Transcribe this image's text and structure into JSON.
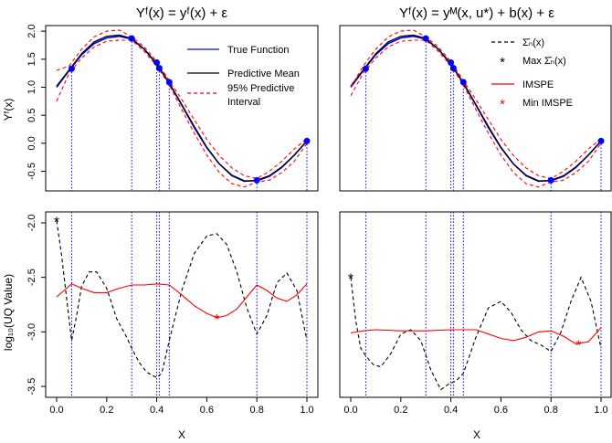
{
  "left_title": "Yᶠ(x) = yᶠ(x) + ε",
  "right_title": "Yᶠ(x) = yᴹ(x, u*) + b(x) + ε",
  "top_ylabel": "Yᶠ(x)",
  "bottom_ylabel": "log₁₀(UQ Value)",
  "xlabel": "X",
  "legend_left": {
    "true_function": "True Function",
    "predictive_mean": "Predictive Mean",
    "interval_line1": "95% Predictive",
    "interval_line2": "Interval"
  },
  "legend_right": {
    "sigma": "Σ̂ₙ(x)",
    "max_sigma": "Max Σ̂ₙ(x)",
    "imspe": "IMSPE",
    "min_imspe": "Min IMSPE"
  },
  "colors": {
    "true_function": "#0000ff",
    "predictive_mean": "#000000",
    "interval": "#ff0000",
    "imspe": "#ff0000",
    "sigma": "#000000",
    "design_points": "#0000ff",
    "vertical_lines": "#0000ff"
  },
  "chart_data": [
    {
      "type": "line",
      "panel": "top-left",
      "xlim": [
        0,
        1
      ],
      "ylim": [
        -0.85,
        2.1
      ],
      "yticks": [
        -0.5,
        0.0,
        0.5,
        1.0,
        1.5,
        2.0
      ],
      "xticks": [],
      "legend_placement": "top-right",
      "design_points": {
        "x": [
          0.06,
          0.3,
          0.4,
          0.41,
          0.45,
          0.8,
          1.0
        ],
        "y": [
          1.33,
          1.87,
          1.44,
          1.34,
          1.09,
          -0.66,
          0.04
        ]
      },
      "series": [
        {
          "name": "True Function",
          "x": [
            0,
            0.05,
            0.1,
            0.15,
            0.2,
            0.25,
            0.3,
            0.35,
            0.4,
            0.45,
            0.5,
            0.55,
            0.6,
            0.65,
            0.7,
            0.75,
            0.8,
            0.85,
            0.9,
            0.95,
            1.0
          ],
          "y": [
            1.0,
            1.3,
            1.58,
            1.78,
            1.88,
            1.91,
            1.86,
            1.68,
            1.41,
            1.07,
            0.68,
            0.28,
            -0.08,
            -0.37,
            -0.57,
            -0.67,
            -0.67,
            -0.59,
            -0.43,
            -0.21,
            0.04
          ]
        },
        {
          "name": "Predictive Mean",
          "x": [
            0,
            0.05,
            0.1,
            0.15,
            0.2,
            0.25,
            0.3,
            0.35,
            0.4,
            0.45,
            0.5,
            0.55,
            0.6,
            0.65,
            0.7,
            0.75,
            0.8,
            0.85,
            0.9,
            0.95,
            1.0
          ],
          "y": [
            1.02,
            1.31,
            1.6,
            1.81,
            1.91,
            1.93,
            1.87,
            1.68,
            1.42,
            1.08,
            0.69,
            0.3,
            -0.07,
            -0.37,
            -0.58,
            -0.68,
            -0.66,
            -0.58,
            -0.42,
            -0.21,
            0.04
          ]
        },
        {
          "name": "95% Predictive Interval (upper)",
          "x": [
            0,
            0.05,
            0.1,
            0.15,
            0.2,
            0.25,
            0.3,
            0.35,
            0.4,
            0.45,
            0.5,
            0.55,
            0.6,
            0.65,
            0.7,
            0.75,
            0.8,
            0.85,
            0.9,
            0.95,
            1.0
          ],
          "y": [
            1.3,
            1.38,
            1.68,
            1.9,
            2.0,
            2.02,
            1.9,
            1.72,
            1.46,
            1.12,
            0.78,
            0.42,
            0.07,
            -0.22,
            -0.44,
            -0.58,
            -0.63,
            -0.5,
            -0.32,
            -0.1,
            0.08
          ]
        },
        {
          "name": "95% Predictive Interval (lower)",
          "x": [
            0,
            0.05,
            0.1,
            0.15,
            0.2,
            0.25,
            0.3,
            0.35,
            0.4,
            0.45,
            0.5,
            0.55,
            0.6,
            0.65,
            0.7,
            0.75,
            0.8,
            0.85,
            0.9,
            0.95,
            1.0
          ],
          "y": [
            0.75,
            1.25,
            1.52,
            1.72,
            1.82,
            1.84,
            1.84,
            1.64,
            1.38,
            1.04,
            0.6,
            0.18,
            -0.21,
            -0.52,
            -0.72,
            -0.78,
            -0.69,
            -0.66,
            -0.52,
            -0.32,
            0.0
          ]
        }
      ]
    },
    {
      "type": "line",
      "panel": "top-right",
      "xlim": [
        0,
        1
      ],
      "ylim": [
        -0.85,
        2.1
      ],
      "yticks": [],
      "xticks": [],
      "legend_placement": "top-right",
      "design_points": {
        "x": [
          0.06,
          0.3,
          0.4,
          0.41,
          0.45,
          0.8,
          1.0
        ],
        "y": [
          1.33,
          1.87,
          1.44,
          1.34,
          1.09,
          -0.66,
          0.04
        ]
      },
      "series": [
        {
          "name": "True Function",
          "x": [
            0,
            0.05,
            0.1,
            0.15,
            0.2,
            0.25,
            0.3,
            0.35,
            0.4,
            0.45,
            0.5,
            0.55,
            0.6,
            0.65,
            0.7,
            0.75,
            0.8,
            0.85,
            0.9,
            0.95,
            1.0
          ],
          "y": [
            1.0,
            1.3,
            1.58,
            1.78,
            1.88,
            1.91,
            1.86,
            1.68,
            1.41,
            1.07,
            0.68,
            0.28,
            -0.08,
            -0.37,
            -0.57,
            -0.67,
            -0.67,
            -0.59,
            -0.43,
            -0.21,
            0.04
          ]
        },
        {
          "name": "Predictive Mean",
          "x": [
            0,
            0.05,
            0.1,
            0.15,
            0.2,
            0.25,
            0.3,
            0.35,
            0.4,
            0.45,
            0.5,
            0.55,
            0.6,
            0.65,
            0.7,
            0.75,
            0.8,
            0.85,
            0.9,
            0.95,
            1.0
          ],
          "y": [
            1.02,
            1.31,
            1.6,
            1.81,
            1.91,
            1.93,
            1.87,
            1.68,
            1.42,
            1.08,
            0.69,
            0.3,
            -0.07,
            -0.37,
            -0.58,
            -0.68,
            -0.66,
            -0.58,
            -0.42,
            -0.21,
            0.04
          ]
        },
        {
          "name": "95% Predictive Interval (upper)",
          "x": [
            0,
            0.05,
            0.1,
            0.15,
            0.2,
            0.25,
            0.3,
            0.35,
            0.4,
            0.45,
            0.5,
            0.55,
            0.6,
            0.65,
            0.7,
            0.75,
            0.8,
            0.85,
            0.9,
            0.95,
            1.0
          ],
          "y": [
            1.0,
            1.38,
            1.68,
            1.9,
            2.0,
            2.02,
            1.9,
            1.72,
            1.46,
            1.12,
            0.78,
            0.42,
            0.07,
            -0.22,
            -0.44,
            -0.58,
            -0.63,
            -0.5,
            -0.32,
            -0.1,
            0.08
          ]
        },
        {
          "name": "95% Predictive Interval (lower)",
          "x": [
            0,
            0.05,
            0.1,
            0.15,
            0.2,
            0.25,
            0.3,
            0.35,
            0.4,
            0.45,
            0.5,
            0.55,
            0.6,
            0.65,
            0.7,
            0.75,
            0.8,
            0.85,
            0.9,
            0.95,
            1.0
          ],
          "y": [
            0.85,
            1.25,
            1.52,
            1.72,
            1.82,
            1.84,
            1.84,
            1.64,
            1.38,
            1.04,
            0.6,
            0.18,
            -0.21,
            -0.52,
            -0.72,
            -0.78,
            -0.69,
            -0.66,
            -0.52,
            -0.32,
            0.0
          ]
        }
      ]
    },
    {
      "type": "line",
      "panel": "bottom-left",
      "xlim": [
        0,
        1
      ],
      "ylim": [
        -3.6,
        -1.9
      ],
      "yticks": [
        -3.5,
        -3.0,
        -2.5,
        -2.0
      ],
      "xticks": [
        0.0,
        0.2,
        0.4,
        0.6,
        0.8,
        1.0
      ],
      "series": [
        {
          "name": "sigma",
          "x": [
            0,
            0.02,
            0.04,
            0.06,
            0.08,
            0.1,
            0.13,
            0.16,
            0.2,
            0.24,
            0.28,
            0.3,
            0.33,
            0.36,
            0.4,
            0.42,
            0.45,
            0.5,
            0.55,
            0.6,
            0.64,
            0.68,
            0.72,
            0.76,
            0.8,
            0.84,
            0.88,
            0.92,
            0.96,
            1.0
          ],
          "y": [
            -1.98,
            -2.3,
            -2.7,
            -3.08,
            -2.85,
            -2.58,
            -2.45,
            -2.45,
            -2.6,
            -2.88,
            -3.05,
            -3.15,
            -3.28,
            -3.37,
            -3.42,
            -3.38,
            -3.08,
            -2.62,
            -2.28,
            -2.12,
            -2.1,
            -2.2,
            -2.45,
            -2.78,
            -3.02,
            -2.85,
            -2.55,
            -2.46,
            -2.62,
            -3.08
          ]
        },
        {
          "name": "IMSPE",
          "x": [
            0,
            0.03,
            0.06,
            0.1,
            0.15,
            0.2,
            0.25,
            0.3,
            0.35,
            0.4,
            0.45,
            0.5,
            0.55,
            0.6,
            0.64,
            0.68,
            0.72,
            0.76,
            0.8,
            0.84,
            0.88,
            0.92,
            0.96,
            1.0
          ],
          "y": [
            -2.68,
            -2.62,
            -2.56,
            -2.6,
            -2.64,
            -2.64,
            -2.6,
            -2.57,
            -2.57,
            -2.56,
            -2.57,
            -2.66,
            -2.76,
            -2.83,
            -2.87,
            -2.85,
            -2.79,
            -2.68,
            -2.57,
            -2.62,
            -2.69,
            -2.72,
            -2.66,
            -2.56
          ]
        }
      ],
      "markers": {
        "max_sigma": {
          "x": 0.0,
          "y": -1.98
        },
        "min_imspe": {
          "x": 0.64,
          "y": -2.87
        }
      },
      "vlines": [
        0.06,
        0.3,
        0.4,
        0.41,
        0.45,
        0.8,
        1.0
      ]
    },
    {
      "type": "line",
      "panel": "bottom-right",
      "xlim": [
        0,
        1
      ],
      "ylim": [
        -3.6,
        -1.9
      ],
      "yticks": [],
      "xticks": [
        0.0,
        0.2,
        0.4,
        0.6,
        0.8,
        1.0
      ],
      "series": [
        {
          "name": "sigma",
          "x": [
            0,
            0.02,
            0.04,
            0.06,
            0.09,
            0.12,
            0.16,
            0.2,
            0.24,
            0.28,
            0.32,
            0.36,
            0.39,
            0.42,
            0.45,
            0.5,
            0.55,
            0.6,
            0.64,
            0.68,
            0.72,
            0.76,
            0.8,
            0.84,
            0.88,
            0.92,
            0.96,
            1.0
          ],
          "y": [
            -2.5,
            -2.9,
            -3.15,
            -3.22,
            -3.3,
            -3.32,
            -3.2,
            -3.02,
            -2.98,
            -3.08,
            -3.35,
            -3.53,
            -3.48,
            -3.45,
            -3.38,
            -3.05,
            -2.78,
            -2.72,
            -2.82,
            -2.98,
            -3.08,
            -3.12,
            -3.18,
            -3.0,
            -2.72,
            -2.5,
            -2.72,
            -3.15
          ]
        },
        {
          "name": "IMSPE",
          "x": [
            0,
            0.05,
            0.1,
            0.2,
            0.3,
            0.4,
            0.5,
            0.55,
            0.6,
            0.65,
            0.7,
            0.75,
            0.8,
            0.85,
            0.9,
            0.95,
            1.0
          ],
          "y": [
            -3.01,
            -2.99,
            -2.98,
            -2.99,
            -2.99,
            -2.98,
            -2.98,
            -3.02,
            -3.06,
            -3.08,
            -3.05,
            -3.0,
            -2.99,
            -3.04,
            -3.11,
            -3.09,
            -2.96
          ]
        }
      ],
      "markers": {
        "max_sigma": {
          "x": 0.0,
          "y": -2.5
        },
        "min_imspe": {
          "x": 0.91,
          "y": -3.11
        }
      },
      "vlines": [
        0.06,
        0.3,
        0.4,
        0.41,
        0.45,
        0.8,
        1.0
      ]
    }
  ]
}
